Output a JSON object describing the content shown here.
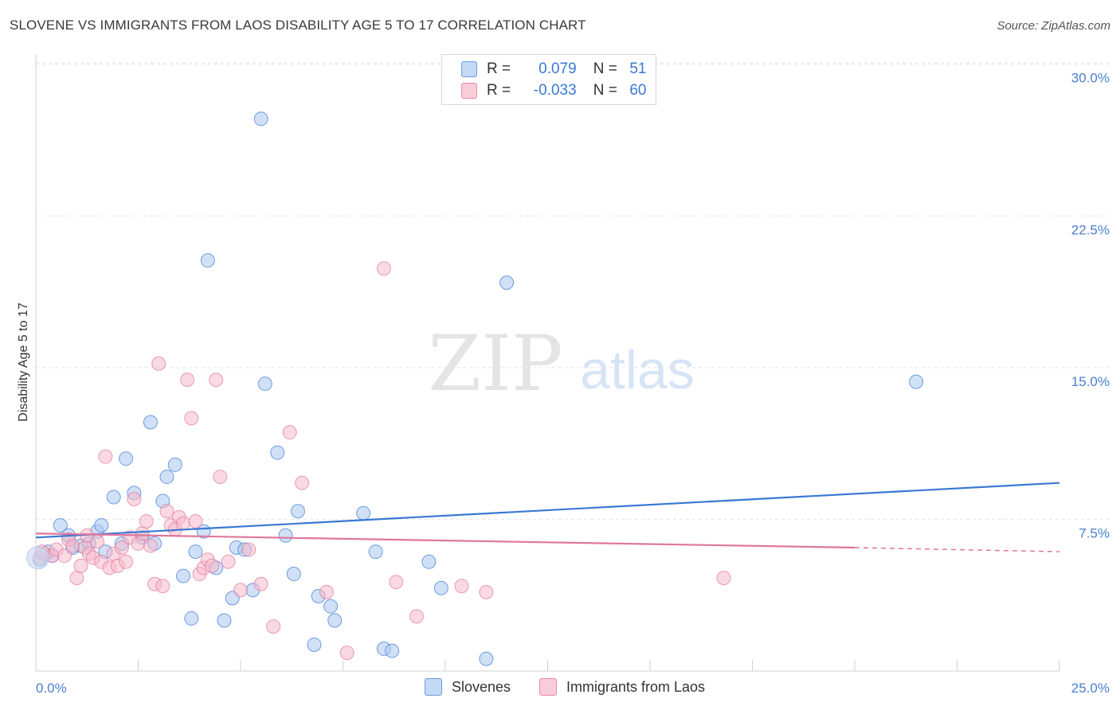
{
  "header": {
    "title": "SLOVENE VS IMMIGRANTS FROM LAOS DISABILITY AGE 5 TO 17 CORRELATION CHART",
    "source": "Source: ZipAtlas.com"
  },
  "watermark": {
    "zip": "ZIP",
    "atlas": "atlas"
  },
  "legend": {
    "r_label": "R =",
    "n_label": "N =",
    "rows": [
      {
        "r": "0.079",
        "n": "51",
        "color": "#a9c8f0"
      },
      {
        "r": "-0.033",
        "n": "60",
        "color": "#f6b9cb"
      }
    ]
  },
  "bottom_legend": [
    {
      "label": "Slovenes",
      "color": "#a9c8f0"
    },
    {
      "label": "Immigrants from Laos",
      "color": "#f6b9cb"
    }
  ],
  "chart_data": {
    "type": "scatter",
    "ylabel": "Disability Age 5 to 17",
    "xlim": [
      0,
      25
    ],
    "ylim": [
      0,
      30.5
    ],
    "x_ticks": [
      "0.0%",
      "25.0%"
    ],
    "y_ticks": [
      {
        "value": 7.5,
        "label": "7.5%"
      },
      {
        "value": 15.0,
        "label": "15.0%"
      },
      {
        "value": 22.5,
        "label": "22.5%"
      },
      {
        "value": 30.0,
        "label": "30.0%"
      }
    ],
    "grid": true,
    "series": [
      {
        "name": "Slovenes",
        "color": "#3a78d4",
        "fill": "#a9c8f0",
        "trend": {
          "x": [
            0,
            25
          ],
          "y": [
            6.6,
            9.3
          ]
        },
        "points": [
          [
            0.1,
            5.5
          ],
          [
            0.3,
            5.9
          ],
          [
            0.4,
            5.7
          ],
          [
            0.6,
            7.2
          ],
          [
            0.8,
            6.7
          ],
          [
            0.9,
            6.1
          ],
          [
            1.1,
            6.2
          ],
          [
            1.3,
            6.3
          ],
          [
            1.5,
            6.9
          ],
          [
            1.6,
            7.2
          ],
          [
            1.7,
            5.9
          ],
          [
            1.9,
            8.6
          ],
          [
            2.1,
            6.3
          ],
          [
            2.2,
            10.5
          ],
          [
            2.4,
            8.8
          ],
          [
            2.6,
            6.6
          ],
          [
            2.8,
            12.3
          ],
          [
            2.9,
            6.3
          ],
          [
            3.1,
            8.4
          ],
          [
            3.2,
            9.6
          ],
          [
            3.4,
            10.2
          ],
          [
            3.6,
            4.7
          ],
          [
            3.8,
            2.6
          ],
          [
            3.9,
            5.9
          ],
          [
            4.1,
            6.9
          ],
          [
            4.2,
            20.3
          ],
          [
            4.4,
            5.1
          ],
          [
            4.6,
            2.5
          ],
          [
            4.8,
            3.6
          ],
          [
            4.9,
            6.1
          ],
          [
            5.1,
            6.0
          ],
          [
            5.3,
            4.0
          ],
          [
            5.5,
            27.3
          ],
          [
            5.6,
            14.2
          ],
          [
            5.9,
            10.8
          ],
          [
            6.1,
            6.7
          ],
          [
            6.3,
            4.8
          ],
          [
            6.4,
            7.9
          ],
          [
            6.8,
            1.3
          ],
          [
            6.9,
            3.7
          ],
          [
            7.2,
            3.2
          ],
          [
            7.3,
            2.5
          ],
          [
            8.0,
            7.8
          ],
          [
            8.3,
            5.9
          ],
          [
            8.5,
            1.1
          ],
          [
            8.7,
            1.0
          ],
          [
            9.6,
            5.4
          ],
          [
            9.9,
            4.1
          ],
          [
            11.0,
            0.6
          ],
          [
            11.5,
            19.2
          ],
          [
            21.5,
            14.3
          ]
        ]
      },
      {
        "name": "Immigrants from Laos",
        "color": "#e0769c",
        "fill": "#f6b9cb",
        "trend": {
          "x": [
            0,
            20
          ],
          "y": [
            6.8,
            6.1
          ]
        },
        "trend_dashed": {
          "x": [
            20,
            25
          ],
          "y": [
            6.1,
            5.9
          ]
        },
        "points": [
          [
            0.1,
            5.6
          ],
          [
            0.2,
            5.8
          ],
          [
            0.4,
            5.7
          ],
          [
            0.5,
            6.0
          ],
          [
            0.7,
            5.7
          ],
          [
            0.8,
            6.5
          ],
          [
            0.9,
            6.2
          ],
          [
            1.0,
            4.6
          ],
          [
            1.1,
            5.2
          ],
          [
            1.2,
            6.1
          ],
          [
            1.3,
            5.8
          ],
          [
            1.4,
            5.6
          ],
          [
            1.5,
            6.4
          ],
          [
            1.6,
            5.4
          ],
          [
            1.7,
            10.6
          ],
          [
            1.8,
            5.1
          ],
          [
            1.9,
            5.8
          ],
          [
            2.0,
            5.2
          ],
          [
            2.1,
            6.1
          ],
          [
            2.2,
            5.4
          ],
          [
            2.3,
            6.6
          ],
          [
            2.4,
            8.5
          ],
          [
            2.5,
            6.3
          ],
          [
            2.6,
            6.8
          ],
          [
            2.7,
            7.4
          ],
          [
            2.8,
            6.2
          ],
          [
            2.9,
            4.3
          ],
          [
            3.0,
            15.2
          ],
          [
            3.1,
            4.2
          ],
          [
            3.2,
            7.9
          ],
          [
            3.3,
            7.2
          ],
          [
            3.4,
            7.0
          ],
          [
            3.5,
            7.6
          ],
          [
            3.6,
            7.3
          ],
          [
            3.7,
            14.4
          ],
          [
            3.8,
            12.5
          ],
          [
            3.9,
            7.4
          ],
          [
            4.0,
            4.8
          ],
          [
            4.1,
            5.1
          ],
          [
            4.2,
            5.5
          ],
          [
            4.3,
            5.2
          ],
          [
            4.4,
            14.4
          ],
          [
            4.5,
            9.6
          ],
          [
            4.7,
            5.4
          ],
          [
            5.0,
            4.0
          ],
          [
            5.2,
            6.0
          ],
          [
            5.5,
            4.3
          ],
          [
            5.8,
            2.2
          ],
          [
            6.2,
            11.8
          ],
          [
            6.5,
            9.3
          ],
          [
            7.1,
            3.9
          ],
          [
            7.6,
            0.9
          ],
          [
            8.5,
            19.9
          ],
          [
            8.8,
            4.4
          ],
          [
            9.3,
            2.7
          ],
          [
            10.4,
            4.2
          ],
          [
            11.0,
            3.9
          ],
          [
            16.8,
            4.6
          ],
          [
            0.15,
            5.9
          ],
          [
            1.25,
            6.7
          ]
        ]
      }
    ]
  }
}
